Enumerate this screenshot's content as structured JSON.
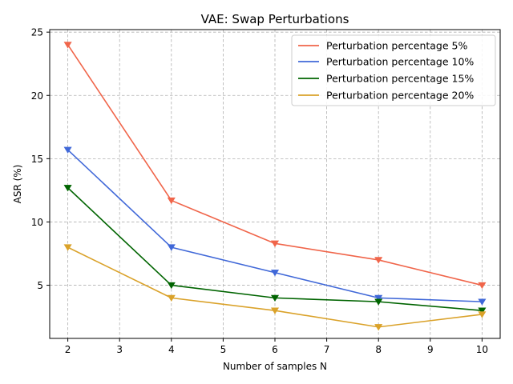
{
  "chart_data": {
    "type": "line",
    "title": "VAE: Swap Perturbations",
    "xlabel": "Number of samples N",
    "ylabel": "ASR (%)",
    "xlim": [
      1.65,
      10.35
    ],
    "ylim": [
      0.8,
      25.2
    ],
    "xticks": [
      2,
      3,
      4,
      5,
      6,
      7,
      8,
      9,
      10
    ],
    "yticks": [
      5,
      10,
      15,
      20,
      25
    ],
    "grid": true,
    "legend_position": "top-right",
    "marker": "triangle-down",
    "x": [
      2,
      4,
      6,
      8,
      10
    ],
    "series": [
      {
        "name": "Perturbation percentage 5%",
        "color": "#f0654a",
        "values": [
          24.0,
          11.7,
          8.3,
          7.0,
          5.0
        ]
      },
      {
        "name": "Perturbation percentage 10%",
        "color": "#4068d8",
        "values": [
          15.7,
          8.0,
          6.0,
          4.0,
          3.7
        ]
      },
      {
        "name": "Perturbation percentage 15%",
        "color": "#006400",
        "values": [
          12.7,
          5.0,
          4.0,
          3.7,
          3.0
        ]
      },
      {
        "name": "Perturbation percentage 20%",
        "color": "#daa22a",
        "values": [
          8.0,
          4.0,
          3.0,
          1.7,
          2.7
        ]
      }
    ]
  }
}
